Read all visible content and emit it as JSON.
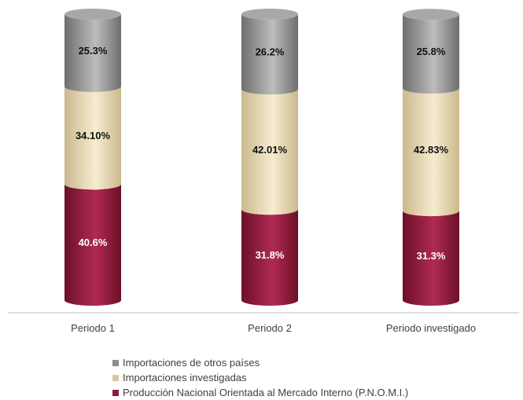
{
  "chart_data": {
    "type": "bar",
    "stacked": true,
    "style": "3d-cylinder",
    "categories": [
      "Periodo 1",
      "Periodo 2",
      "Periodo investigado"
    ],
    "series": [
      {
        "name": "Producción Nacional Orientada al Mercado Interno (P.N.O.M.I.)",
        "values": [
          40.6,
          31.8,
          31.3
        ],
        "labels": [
          "40.6%",
          "31.8%",
          "31.3%"
        ],
        "color": "#8e1a3c"
      },
      {
        "name": "Importaciones investigadas",
        "values": [
          34.1,
          42.01,
          42.83
        ],
        "labels": [
          "34.10%",
          "42.01%",
          "42.83%"
        ],
        "color": "#e3d3b1"
      },
      {
        "name": "Importaciones de otros países",
        "values": [
          25.3,
          26.2,
          25.8
        ],
        "labels": [
          "25.3%",
          "26.2%",
          "25.8%"
        ],
        "color": "#999999"
      }
    ],
    "ylim": [
      0,
      100
    ],
    "grid": false,
    "legend_position": "bottom"
  },
  "legend": {
    "items": [
      {
        "label": "Importaciones de otros países",
        "color": "#8c8c8c"
      },
      {
        "label": "Importaciones investigadas",
        "color": "#d7c69f"
      },
      {
        "label": "Producción Nacional Orientada al Mercado Interno (P.N.O.M.I.)",
        "color": "#8e1a3c"
      }
    ]
  }
}
